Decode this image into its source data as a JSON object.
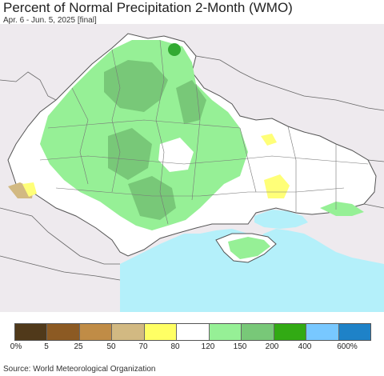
{
  "header": {
    "title": "Percent of Normal Precipitation 2-Month (WMO)",
    "subtitle": "Apr. 6 - Jun. 5, 2025 [final]"
  },
  "colors": {
    "land_outside": "#eeeaee",
    "sea": "#b4f0fa",
    "region_white": "#ffffff",
    "region_green": "#96f096",
    "region_darkgreen": "#78c878",
    "region_yellow": "#ffff78",
    "region_tan": "#d2b982",
    "region_brightgreen": "#32aa32",
    "border": "#555555"
  },
  "legend": {
    "swatches": [
      {
        "color": "#50391a"
      },
      {
        "color": "#8c5a23"
      },
      {
        "color": "#c08c46"
      },
      {
        "color": "#d2b982"
      },
      {
        "color": "#ffff64"
      },
      {
        "color": "#ffffff"
      },
      {
        "color": "#96f096"
      },
      {
        "color": "#78c878"
      },
      {
        "color": "#32aa14"
      },
      {
        "color": "#78c8ff"
      },
      {
        "color": "#1e82c8"
      }
    ],
    "labels": [
      "0%",
      "5",
      "25",
      "50",
      "70",
      "80",
      "120",
      "150",
      "200",
      "400",
      "600%"
    ]
  },
  "footer": {
    "source": "Source: World Meteorological Organization"
  }
}
